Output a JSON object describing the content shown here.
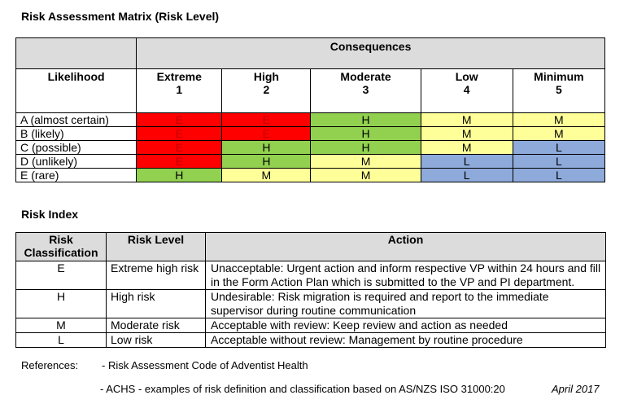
{
  "matrix": {
    "title": "Risk  Assessment Matrix (Risk Level)",
    "consequences_label": "Consequences",
    "likelihood_label": "Likelihood",
    "columns": [
      {
        "name": "Extreme",
        "num": "1"
      },
      {
        "name": "High",
        "num": "2"
      },
      {
        "name": "Moderate",
        "num": "3"
      },
      {
        "name": "Low",
        "num": "4"
      },
      {
        "name": "Minimum",
        "num": "5"
      }
    ],
    "rows": [
      {
        "label": "A (almost certain)",
        "cells": [
          "E",
          "E",
          "H",
          "M",
          "M"
        ]
      },
      {
        "label": "B (likely)",
        "cells": [
          "E",
          "E",
          "H",
          "M",
          "M"
        ]
      },
      {
        "label": "C (possible)",
        "cells": [
          "E",
          "H",
          "H",
          "M",
          "L"
        ]
      },
      {
        "label": "D (unlikely)",
        "cells": [
          "E",
          "H",
          "M",
          "L",
          "L"
        ]
      },
      {
        "label": "E (rare)",
        "cells": [
          "H",
          "M",
          "M",
          "L",
          "L"
        ]
      }
    ],
    "colors": {
      "E": "#ff0000",
      "H": "#92d050",
      "M": "#ffff99",
      "L": "#8eaadb"
    }
  },
  "index": {
    "title": "Risk Index",
    "headers": {
      "classification": "Risk Classification",
      "level": "Risk Level",
      "action": "Action"
    },
    "rows": [
      {
        "cls": "E",
        "level": "Extreme high risk",
        "action": "Unacceptable: Urgent action and inform respective VP within 24 hours and fill in the Form Action Plan which is submitted to the VP and PI department."
      },
      {
        "cls": "H",
        "level": "High risk",
        "action": "Undesirable: Risk migration is required and report to the immediate supervisor during routine communication"
      },
      {
        "cls": "M",
        "level": "Moderate risk",
        "action": "Acceptable with review: Keep review and action as needed"
      },
      {
        "cls": "L",
        "level": "Low risk",
        "action": "Acceptable without review: Management by routine procedure"
      }
    ]
  },
  "references": {
    "label": "References:",
    "line1": "- Risk Assessment Code of Adventist Health",
    "line2": "- ACHS  - examples of risk definition and classification based on AS/NZS ISO 31000:20",
    "date": "April 2017"
  }
}
